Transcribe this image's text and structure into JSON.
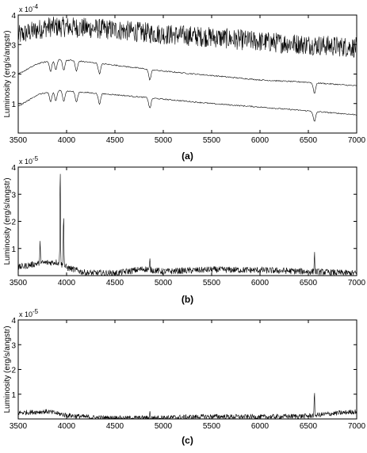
{
  "chart_data": [
    {
      "type": "line",
      "panel_label": "(a)",
      "ylabel": "Luminosity (erg/s/angstr)",
      "exponent_label": "x 10",
      "exponent_power": "-4",
      "xlim": [
        3500,
        7000
      ],
      "ylim": [
        0,
        4
      ],
      "x_ticks": [
        "3500",
        "4000",
        "4500",
        "5000",
        "5500",
        "6000",
        "6500",
        "7000"
      ],
      "y_ticks": [
        "1",
        "2",
        "3",
        "4"
      ],
      "series": [
        {
          "kind": "noisy",
          "x": [
            3500,
            3800,
            4000,
            4500,
            5000,
            5500,
            6000,
            6500,
            7000
          ],
          "y": [
            3.3,
            3.6,
            3.6,
            3.5,
            3.35,
            3.25,
            3.1,
            3.0,
            2.9
          ],
          "noise": 0.35
        },
        {
          "kind": "model",
          "x": [
            3500,
            3700,
            3900,
            4100,
            4500,
            5000,
            5500,
            6000,
            6500,
            7000
          ],
          "y": [
            2.0,
            2.35,
            2.5,
            2.45,
            2.3,
            2.1,
            1.95,
            1.8,
            1.72,
            1.6
          ],
          "noise": 0.02
        },
        {
          "kind": "model",
          "x": [
            3500,
            3700,
            3900,
            4100,
            4500,
            5000,
            5500,
            6000,
            6500,
            7000
          ],
          "y": [
            0.9,
            1.3,
            1.45,
            1.4,
            1.3,
            1.15,
            1.0,
            0.88,
            0.75,
            0.62
          ],
          "noise": 0.02
        }
      ],
      "absorption_lines": [
        3835,
        3889,
        3970,
        4102,
        4340,
        4861,
        6563
      ]
    },
    {
      "type": "line",
      "panel_label": "(b)",
      "ylabel": "Luminosity (erg/s/angstr)",
      "exponent_label": "x 10",
      "exponent_power": "-5",
      "xlim": [
        3500,
        7000
      ],
      "ylim": [
        0,
        4
      ],
      "x_ticks": [
        "3500",
        "4000",
        "4500",
        "5000",
        "5500",
        "6000",
        "6500",
        "7000"
      ],
      "y_ticks": [
        "1",
        "2",
        "3",
        "4"
      ],
      "series": [
        {
          "kind": "noisy",
          "x": [
            3500,
            3700,
            3900,
            4000,
            4200,
            4500,
            4800,
            5000,
            5500,
            6000,
            6500,
            7000
          ],
          "y": [
            0.3,
            0.45,
            0.5,
            0.3,
            0.1,
            0.08,
            0.25,
            0.15,
            0.22,
            0.2,
            0.15,
            0.08
          ],
          "noise": 0.12
        }
      ],
      "emission_lines": [
        {
          "x": 3727,
          "y": 0.8
        },
        {
          "x": 3934,
          "y": 3.9
        },
        {
          "x": 3969,
          "y": 2.1
        },
        {
          "x": 4861,
          "y": 0.35
        },
        {
          "x": 6563,
          "y": 0.75
        }
      ]
    },
    {
      "type": "line",
      "panel_label": "(c)",
      "ylabel": "Luminosity (erg/s/angstr)",
      "exponent_label": "x 10",
      "exponent_power": "-5",
      "xlim": [
        3500,
        7000
      ],
      "ylim": [
        0,
        4
      ],
      "x_ticks": [
        "3500",
        "4000",
        "4500",
        "5000",
        "5500",
        "6000",
        "6500",
        "7000"
      ],
      "y_ticks": [
        "1",
        "2",
        "3",
        "4"
      ],
      "series": [
        {
          "kind": "noisy",
          "x": [
            3500,
            3800,
            4000,
            4300,
            4600,
            5000,
            5500,
            6000,
            6500,
            6700,
            7000
          ],
          "y": [
            0.25,
            0.3,
            0.15,
            0.05,
            0.03,
            0.05,
            0.1,
            0.08,
            0.12,
            0.2,
            0.3
          ],
          "noise": 0.1
        }
      ],
      "emission_lines": [
        {
          "x": 4861,
          "y": 0.25
        },
        {
          "x": 6563,
          "y": 0.9
        }
      ]
    }
  ]
}
